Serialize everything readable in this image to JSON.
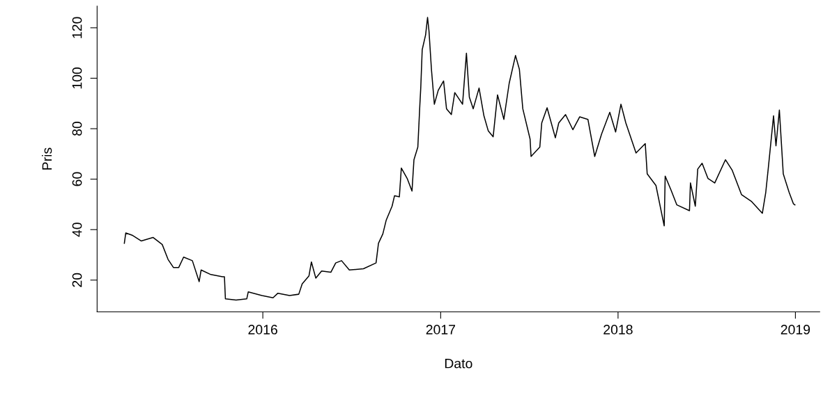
{
  "chart_data": {
    "type": "line",
    "xlabel": "Dato",
    "ylabel": "Pris",
    "grid": false,
    "legend": false,
    "x": [
      "2015-03-22",
      "2015-03-25",
      "2015-04-07",
      "2015-04-26",
      "2015-05-20",
      "2015-06-08",
      "2015-06-20",
      "2015-07-01",
      "2015-07-12",
      "2015-07-22",
      "2015-08-09",
      "2015-08-23",
      "2015-08-27",
      "2015-09-16",
      "2015-10-10",
      "2015-10-14",
      "2015-10-16",
      "2015-11-07",
      "2015-11-29",
      "2015-12-02",
      "2015-12-30",
      "2016-01-22",
      "2016-02-01",
      "2016-02-25",
      "2016-03-15",
      "2016-03-22",
      "2016-04-05",
      "2016-04-10",
      "2016-04-19",
      "2016-05-01",
      "2016-05-20",
      "2016-05-30",
      "2016-06-11",
      "2016-06-27",
      "2016-07-26",
      "2016-08-21",
      "2016-08-26",
      "2016-09-04",
      "2016-09-11",
      "2016-09-23",
      "2016-09-28",
      "2016-10-08",
      "2016-10-12",
      "2016-10-24",
      "2016-11-03",
      "2016-11-07",
      "2016-11-15",
      "2016-11-19",
      "2016-11-21",
      "2016-11-24",
      "2016-12-01",
      "2016-12-05",
      "2016-12-08",
      "2016-12-13",
      "2016-12-19",
      "2016-12-27",
      "2017-01-07",
      "2017-01-13",
      "2017-01-23",
      "2017-01-30",
      "2017-02-15",
      "2017-02-23",
      "2017-03-01",
      "2017-03-09",
      "2017-03-21",
      "2017-03-31",
      "2017-04-09",
      "2017-04-19",
      "2017-04-28",
      "2017-05-11",
      "2017-05-22",
      "2017-06-04",
      "2017-06-12",
      "2017-06-19",
      "2017-07-04",
      "2017-07-06",
      "2017-07-24",
      "2017-07-28",
      "2017-08-08",
      "2017-08-25",
      "2017-09-01",
      "2017-09-15",
      "2017-09-30",
      "2017-10-14",
      "2017-10-31",
      "2017-11-14",
      "2017-11-28",
      "2017-12-15",
      "2017-12-27",
      "2018-01-07",
      "2018-01-17",
      "2018-02-07",
      "2018-02-26",
      "2018-03-02",
      "2018-03-20",
      "2018-04-06",
      "2018-04-08",
      "2018-04-20",
      "2018-05-02",
      "2018-05-28",
      "2018-05-30",
      "2018-06-09",
      "2018-06-14",
      "2018-06-23",
      "2018-07-05",
      "2018-07-19",
      "2018-08-10",
      "2018-08-24",
      "2018-09-12",
      "2018-10-03",
      "2018-10-25",
      "2018-11-01",
      "2018-11-06",
      "2018-11-17",
      "2018-11-22",
      "2018-11-29",
      "2018-12-07",
      "2018-12-19",
      "2018-12-28",
      "2018-12-31"
    ],
    "series": [
      {
        "color": "#000000",
        "values": [
          34.6,
          38.7,
          37.8,
          35.5,
          36.9,
          34.1,
          28.2,
          25.0,
          25.0,
          29.1,
          27.7,
          19.4,
          24.0,
          22.2,
          21.3,
          21.3,
          12.6,
          12.1,
          12.6,
          15.3,
          13.9,
          13.0,
          14.8,
          13.9,
          14.4,
          18.5,
          21.7,
          27.2,
          20.8,
          23.6,
          23.1,
          26.8,
          27.7,
          24.0,
          24.5,
          26.8,
          34.6,
          38.3,
          43.8,
          49.3,
          53.4,
          53.0,
          64.4,
          60.3,
          55.3,
          67.7,
          72.7,
          88.8,
          96.1,
          111.3,
          117.2,
          124.1,
          118.6,
          103.5,
          89.7,
          95.2,
          98.9,
          87.9,
          85.6,
          94.3,
          89.7,
          109.9,
          92.5,
          87.9,
          96.1,
          85.1,
          79.1,
          76.8,
          93.4,
          83.7,
          98.0,
          109.0,
          103.5,
          87.9,
          75.9,
          69.0,
          72.7,
          82.3,
          88.3,
          76.4,
          82.3,
          85.6,
          79.6,
          84.7,
          83.7,
          69.0,
          77.8,
          86.5,
          78.7,
          89.7,
          82.3,
          70.4,
          74.1,
          62.1,
          57.5,
          41.5,
          61.2,
          55.7,
          49.8,
          47.5,
          58.5,
          49.3,
          64.0,
          66.3,
          60.3,
          58.5,
          67.7,
          63.5,
          53.9,
          51.1,
          46.5,
          54.8,
          64.0,
          85.1,
          73.2,
          87.4,
          62.1,
          54.8,
          50.2,
          49.8
        ]
      }
    ],
    "xlim": [
      "2015-01-25",
      "2019-02-20"
    ],
    "ylim": [
      7.4,
      128.6
    ],
    "xticks": [
      {
        "value": "2016-01-01",
        "label": "2016"
      },
      {
        "value": "2017-01-01",
        "label": "2017"
      },
      {
        "value": "2018-01-01",
        "label": "2018"
      },
      {
        "value": "2019-01-01",
        "label": "2019"
      }
    ],
    "yticks": [
      20,
      40,
      60,
      80,
      100,
      120
    ]
  }
}
